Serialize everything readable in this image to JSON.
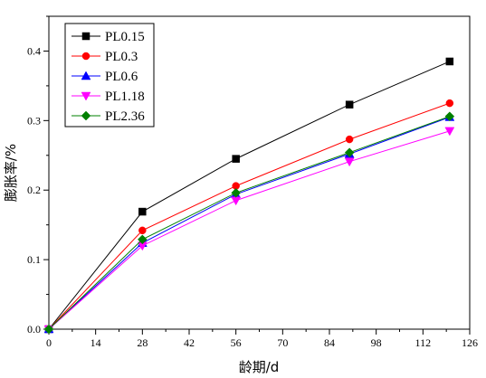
{
  "chart_data": {
    "type": "line",
    "xlabel": "龄期/d",
    "ylabel": "膨胀率/%",
    "xlim": [
      0,
      126
    ],
    "ylim": [
      0,
      0.45
    ],
    "x_ticks": [
      0,
      14,
      28,
      42,
      56,
      70,
      84,
      98,
      112,
      126
    ],
    "y_ticks": [
      0.0,
      0.1,
      0.2,
      0.3,
      0.4
    ],
    "x_tick_labels": [
      "0",
      "14",
      "28",
      "42",
      "56",
      "70",
      "84",
      "98",
      "112",
      "126"
    ],
    "y_tick_labels": [
      "0.0",
      "0.1",
      "0.2",
      "0.3",
      "0.4"
    ],
    "grid": false,
    "legend_position": "top-left",
    "x": [
      0,
      28,
      56,
      90,
      120
    ],
    "series": [
      {
        "name": "PL0.15",
        "color": "#000000",
        "marker": "square",
        "values": [
          0,
          0.169,
          0.245,
          0.323,
          0.385
        ]
      },
      {
        "name": "PL0.3",
        "color": "#ff0000",
        "marker": "circle",
        "values": [
          0,
          0.142,
          0.206,
          0.273,
          0.325
        ]
      },
      {
        "name": "PL0.6",
        "color": "#0000ff",
        "marker": "triangle-up",
        "values": [
          0,
          0.124,
          0.194,
          0.252,
          0.305
        ]
      },
      {
        "name": "PL1.18",
        "color": "#ff00ff",
        "marker": "triangle-down",
        "values": [
          0,
          0.12,
          0.185,
          0.241,
          0.285
        ]
      },
      {
        "name": "PL2.36",
        "color": "#008000",
        "marker": "diamond",
        "values": [
          0,
          0.129,
          0.196,
          0.254,
          0.306
        ]
      }
    ]
  }
}
